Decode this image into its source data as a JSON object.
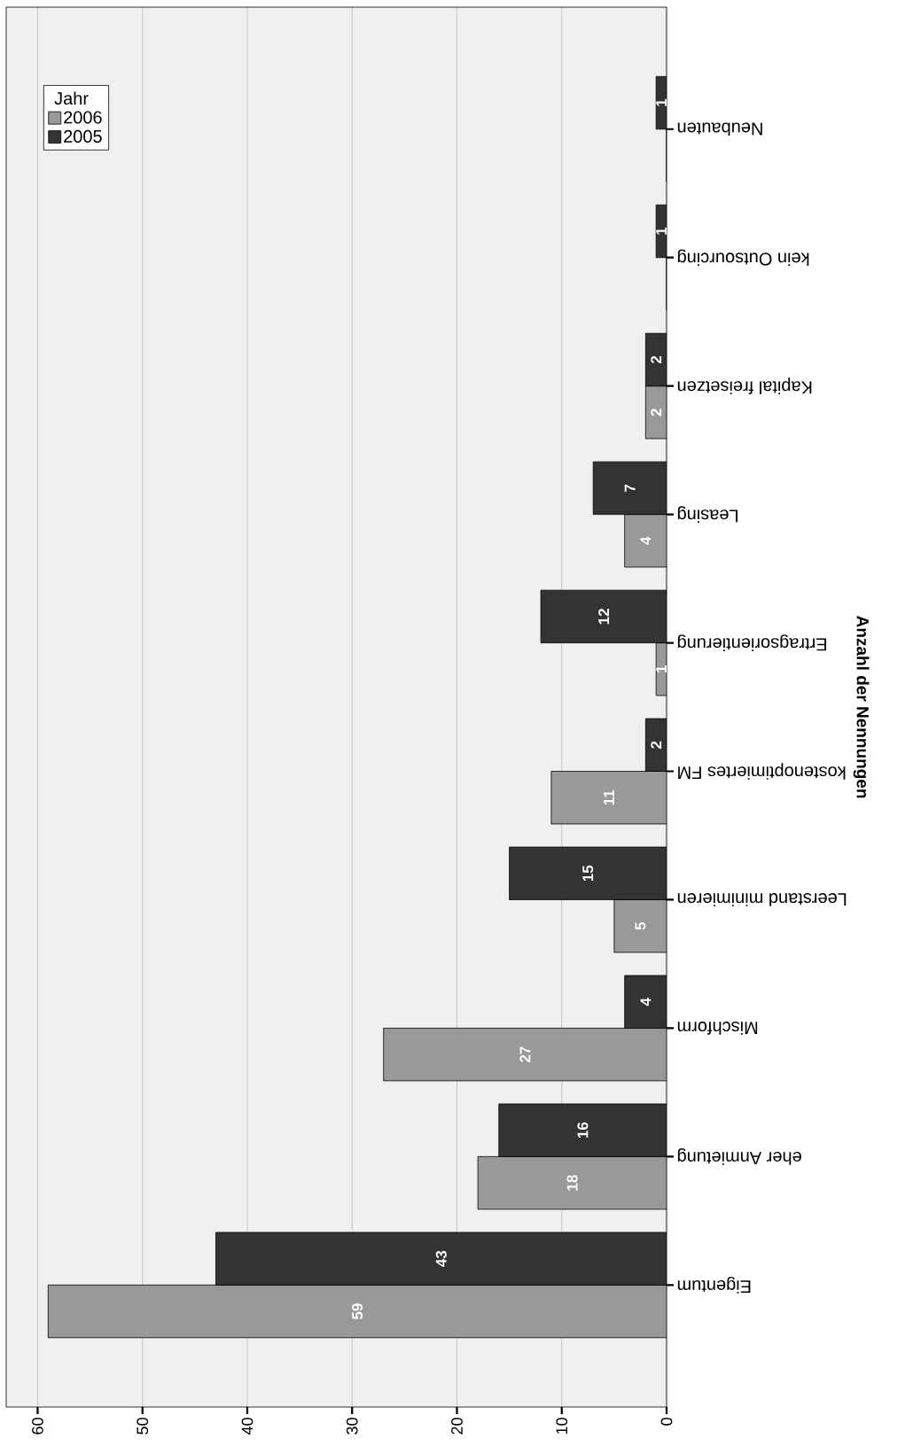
{
  "chart_data": {
    "type": "bar",
    "orientation": "horizontal",
    "ylabel": "Anzahl der Nennungen",
    "legend_title": "Jahr",
    "categories": [
      "Neubauten",
      "kein Outsourcing",
      "Kapital freisetzen",
      "Leasing",
      "Ertragsorientierung",
      "kostenoptimiertes FM",
      "Leerstand minimieren",
      "Mischform",
      "eher Anmietung",
      "Eigentum"
    ],
    "series": [
      {
        "name": "2006",
        "color": "#999999",
        "values": [
          0,
          0,
          2,
          4,
          1,
          11,
          5,
          27,
          18,
          59
        ],
        "value_labels": [
          null,
          null,
          "2",
          "4",
          "1",
          "11",
          "5",
          "27",
          "18",
          "59"
        ]
      },
      {
        "name": "2005",
        "color": "#333333",
        "values": [
          1,
          1,
          2,
          7,
          12,
          2,
          15,
          4,
          16,
          43
        ],
        "value_labels": [
          "1",
          "1",
          "2",
          "7",
          "12",
          "2",
          "15",
          "4",
          "16",
          "43"
        ]
      }
    ],
    "xlim": [
      63,
      0
    ],
    "xticks": [
      0,
      10,
      20,
      30,
      40,
      50,
      60
    ],
    "grid": "x",
    "legend": "top left"
  }
}
